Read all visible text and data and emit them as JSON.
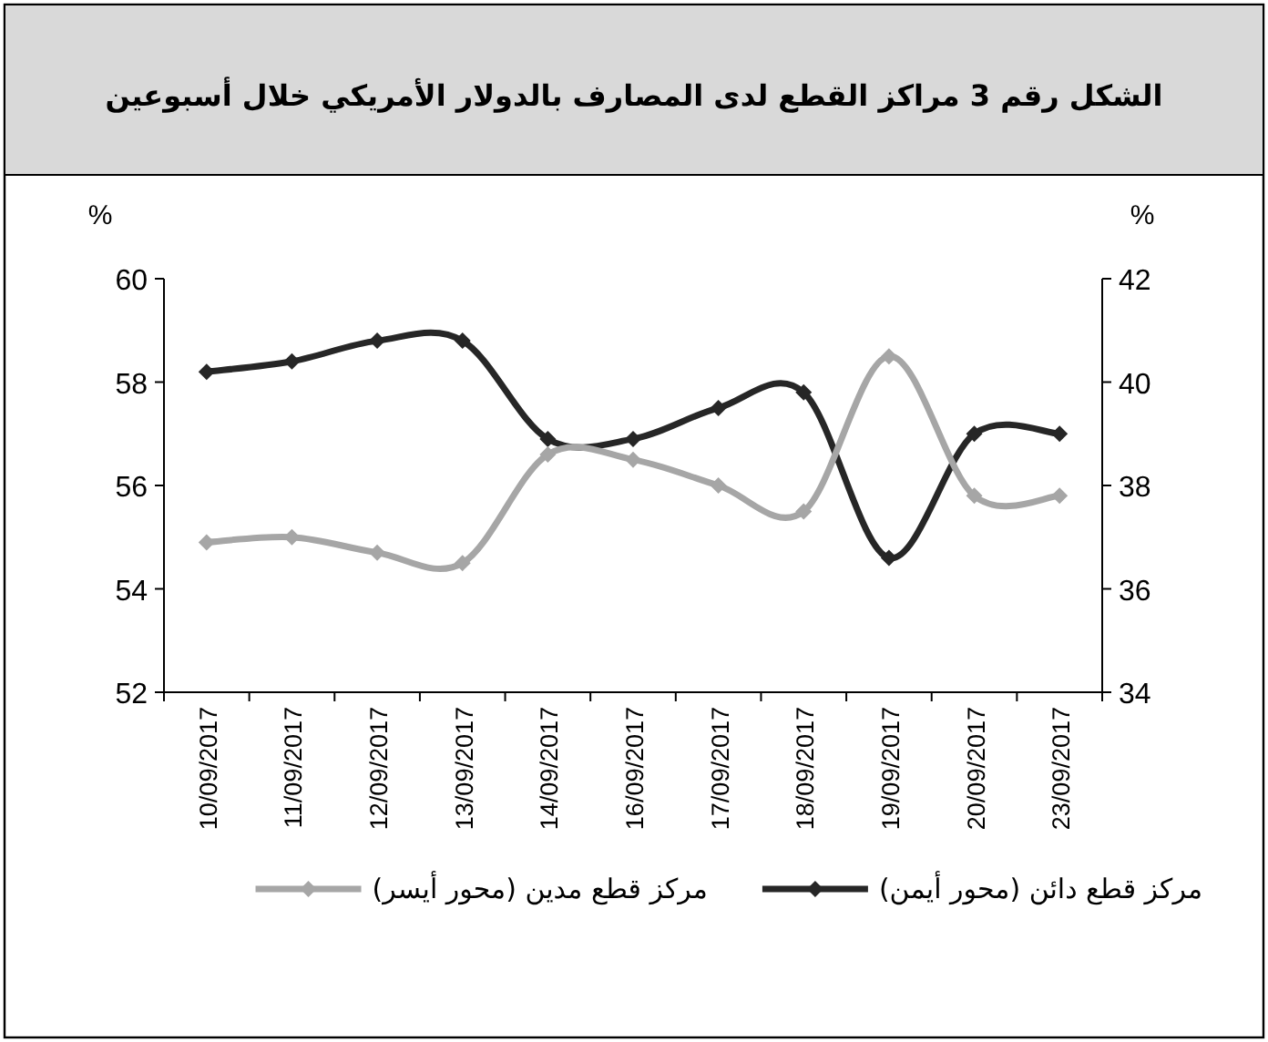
{
  "chart_data": {
    "type": "line",
    "title": "الشكل رقم 3 مراكز القطع لدى المصارف بالدولار الأمريكي خلال أسبوعين",
    "categories": [
      "10/09/2017",
      "11/09/2017",
      "12/09/2017",
      "13/09/2017",
      "14/09/2017",
      "16/09/2017",
      "17/09/2017",
      "18/09/2017",
      "19/09/2017",
      "20/09/2017",
      "23/09/2017"
    ],
    "series": [
      {
        "name": "مركز قطع دائن (محور أيمن)",
        "color": "#262626",
        "axis": "y2",
        "values": [
          40.2,
          40.4,
          40.8,
          40.8,
          38.9,
          38.9,
          39.5,
          39.8,
          36.6,
          39.0,
          39.0
        ]
      },
      {
        "name": "مركز قطع مدين (محور أيسر)",
        "color": "#a6a6a6",
        "values": [
          54.9,
          55.0,
          54.7,
          54.5,
          56.6,
          56.5,
          56.0,
          55.5,
          58.5,
          55.8,
          55.8
        ]
      }
    ],
    "ylabel": "%",
    "y2label": "%",
    "ylim": [
      52,
      60
    ],
    "yticks": [
      52,
      54,
      56,
      58,
      60
    ],
    "y2lim": [
      34,
      42
    ],
    "y2ticks": [
      34,
      36,
      38,
      40,
      42
    ],
    "legend": "bottom",
    "marker": "diamond",
    "line_style": "solid"
  }
}
